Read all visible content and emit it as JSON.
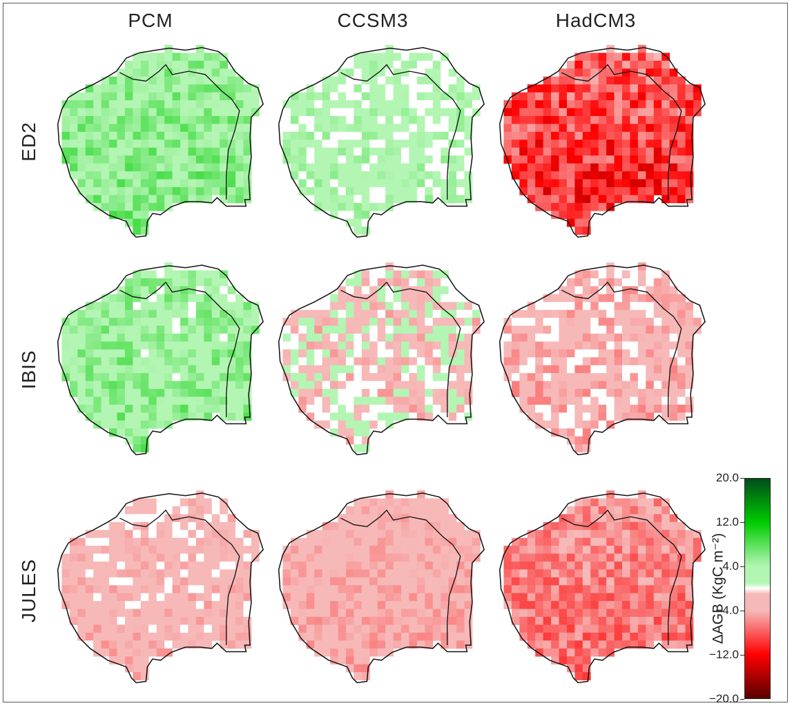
{
  "chart_data": {
    "type": "heatmap",
    "columns": [
      "PCM",
      "CCSM3",
      "HadCM3"
    ],
    "rows": [
      "ED2",
      "IBIS",
      "JULES"
    ],
    "colorbar": {
      "label": "ΔAGB (KgC m⁻²)",
      "range": [
        -20.0,
        20.0
      ],
      "ticks": [
        "20.0",
        "12.0",
        "4.0",
        "-4.0",
        "-12.0",
        "-20.0"
      ],
      "tick_values": [
        20,
        12,
        4,
        -4,
        -12,
        -20
      ],
      "colors": {
        "dark_green": "#004d1a",
        "green": "#00cc00",
        "light_green": "#b3f5b3",
        "white": "#ffffff",
        "light_red": "#f7b8b8",
        "red": "#ff0000",
        "dark_red": "#5a0000"
      }
    },
    "panels": [
      {
        "row": "ED2",
        "column": "PCM",
        "mean_change": 5.5,
        "spread": 3.0
      },
      {
        "row": "ED2",
        "column": "CCSM3",
        "mean_change": 2.5,
        "spread": 3.2
      },
      {
        "row": "ED2",
        "column": "HadCM3",
        "mean_change": -9.5,
        "spread": 4.0
      },
      {
        "row": "IBIS",
        "column": "PCM",
        "mean_change": 4.5,
        "spread": 3.5
      },
      {
        "row": "IBIS",
        "column": "CCSM3",
        "mean_change": -1.0,
        "spread": 4.5
      },
      {
        "row": "IBIS",
        "column": "HadCM3",
        "mean_change": -3.0,
        "spread": 3.5
      },
      {
        "row": "JULES",
        "column": "PCM",
        "mean_change": -3.0,
        "spread": 2.5
      },
      {
        "row": "JULES",
        "column": "CCSM3",
        "mean_change": -4.0,
        "spread": 2.0
      },
      {
        "row": "JULES",
        "column": "HadCM3",
        "mean_change": -6.5,
        "spread": 2.5
      }
    ]
  }
}
